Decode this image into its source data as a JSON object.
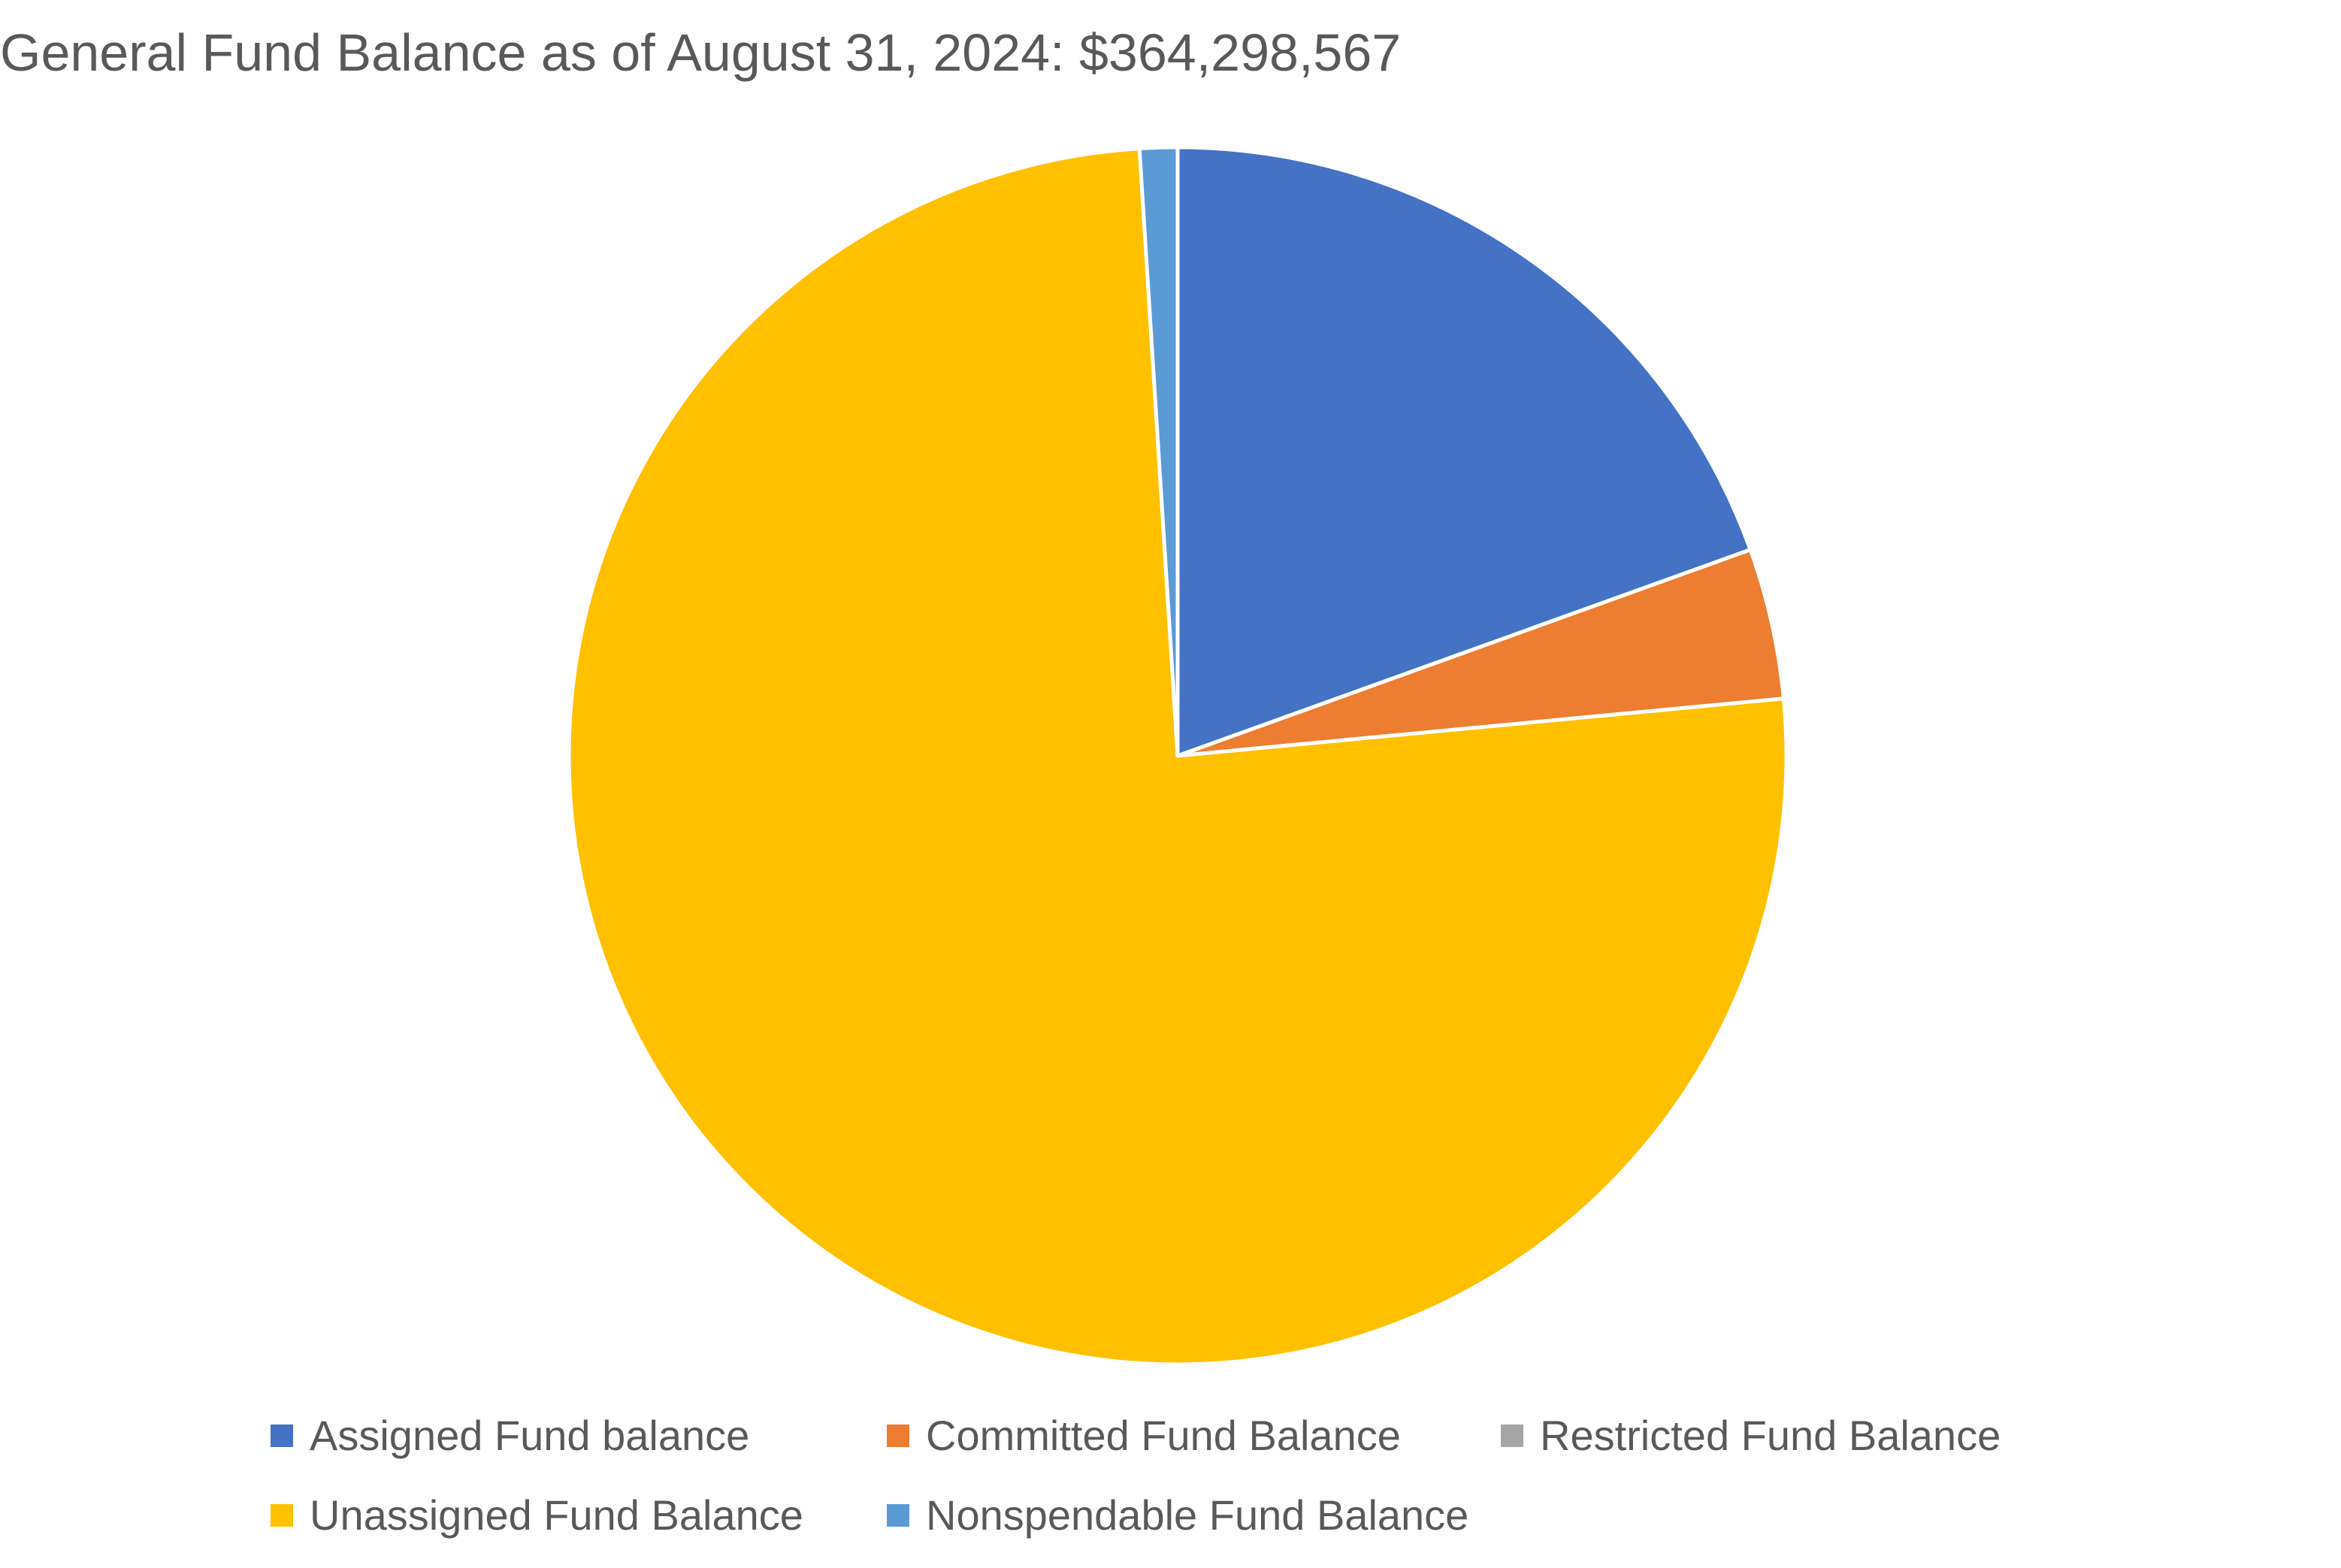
{
  "chart_data": {
    "type": "pie",
    "title": "General Fund Balance as of August 31, 2024: $364,298,567",
    "categories": [
      "Assigned Fund balance",
      "Committed Fund Balance",
      "Restricted Fund Balance",
      "Unassigned Fund Balance",
      "Nonspendable Fund Balance"
    ],
    "values_percent": [
      19.5,
      4.0,
      0.0,
      75.5,
      1.0
    ],
    "colors": [
      "#4472C4",
      "#ED7D31",
      "#A5A5A5",
      "#FFC000",
      "#5B9BD5"
    ],
    "start_angle_deg": 0,
    "direction": "clockwise",
    "data_labels": false,
    "legend_position": "bottom"
  }
}
